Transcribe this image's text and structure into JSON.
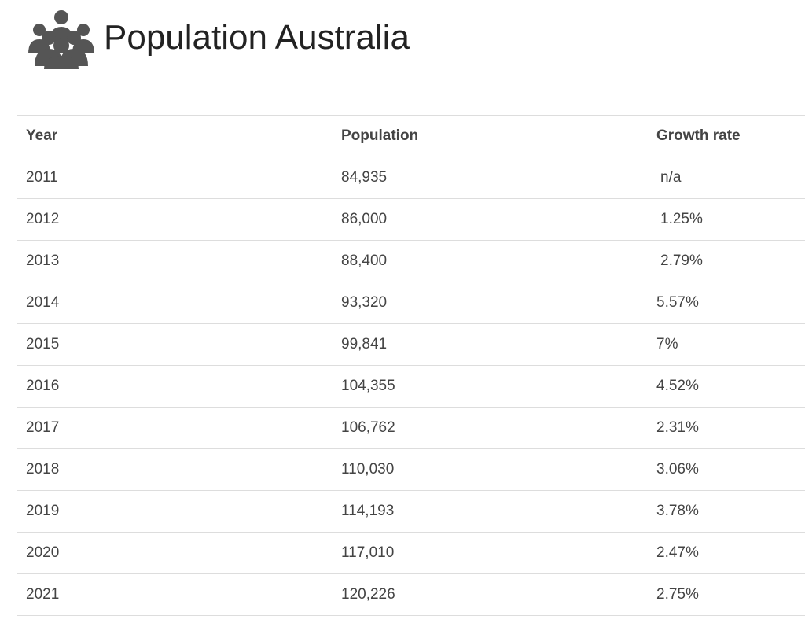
{
  "header": {
    "title": "Population Australia",
    "icon": "people-group-icon",
    "icon_color": "#555555"
  },
  "table": {
    "columns": [
      "Year",
      "Population",
      "Growth rate"
    ],
    "rows": [
      [
        "2011",
        "84,935",
        "n/a"
      ],
      [
        "2012",
        "86,000",
        "1.25%"
      ],
      [
        "2013",
        "88,400",
        "2.79%"
      ],
      [
        "2014",
        "93,320",
        "5.57%"
      ],
      [
        "2015",
        "99,841",
        "7%"
      ],
      [
        "2016",
        "104,355",
        "4.52%"
      ],
      [
        "2017",
        "106,762",
        "2.31%"
      ],
      [
        "2018",
        "110,030",
        "3.06%"
      ],
      [
        "2019",
        "114,193",
        "3.78%"
      ],
      [
        "2020",
        "117,010",
        "2.47%"
      ],
      [
        "2021",
        "120,226",
        "2.75%"
      ]
    ]
  }
}
